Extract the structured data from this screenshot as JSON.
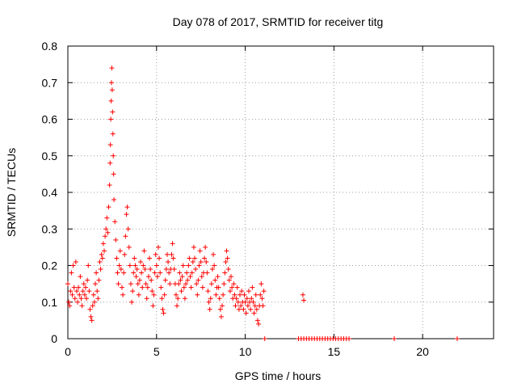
{
  "chart_data": {
    "type": "scatter",
    "title": "Day 078 of 2017, SRMTID for receiver titg",
    "xlabel": "GPS time / hours",
    "ylabel": "SRMTID / TECUs",
    "xlim": [
      0,
      24
    ],
    "ylim": [
      0,
      0.8
    ],
    "xticks": [
      0,
      5,
      10,
      15,
      20
    ],
    "xtick_labels": [
      "0",
      "5",
      "10",
      "15",
      "20"
    ],
    "yticks": [
      0,
      0.1,
      0.2,
      0.3,
      0.4,
      0.5,
      0.6,
      0.7,
      0.8
    ],
    "ytick_labels": [
      "0",
      "0.1",
      "0.2",
      "0.3",
      "0.4",
      "0.5",
      "0.6",
      "0.7",
      "0.8"
    ],
    "grid": true,
    "marker": "plus",
    "color": "#ff0000",
    "series": [
      {
        "name": "SRMTID",
        "points": [
          [
            0.0,
            0.15
          ],
          [
            0.05,
            0.1
          ],
          [
            0.1,
            0.09
          ],
          [
            0.15,
            0.13
          ],
          [
            0.2,
            0.18
          ],
          [
            0.25,
            0.12
          ],
          [
            0.3,
            0.2
          ],
          [
            0.35,
            0.14
          ],
          [
            0.4,
            0.11
          ],
          [
            0.45,
            0.21
          ],
          [
            0.5,
            0.13
          ],
          [
            0.55,
            0.1
          ],
          [
            0.6,
            0.14
          ],
          [
            0.65,
            0.12
          ],
          [
            0.7,
            0.17
          ],
          [
            0.75,
            0.11
          ],
          [
            0.8,
            0.09
          ],
          [
            0.85,
            0.13
          ],
          [
            0.9,
            0.15
          ],
          [
            0.95,
            0.12
          ],
          [
            1.0,
            0.14
          ],
          [
            1.05,
            0.11
          ],
          [
            1.1,
            0.16
          ],
          [
            1.15,
            0.2
          ],
          [
            1.2,
            0.13
          ],
          [
            1.25,
            0.08
          ],
          [
            1.3,
            0.06
          ],
          [
            1.35,
            0.05
          ],
          [
            1.4,
            0.09
          ],
          [
            1.45,
            0.12
          ],
          [
            1.5,
            0.1
          ],
          [
            1.55,
            0.15
          ],
          [
            1.6,
            0.18
          ],
          [
            1.65,
            0.13
          ],
          [
            1.7,
            0.11
          ],
          [
            1.75,
            0.16
          ],
          [
            1.8,
            0.21
          ],
          [
            1.85,
            0.19
          ],
          [
            1.9,
            0.23
          ],
          [
            1.95,
            0.22
          ],
          [
            2.0,
            0.26
          ],
          [
            2.05,
            0.24
          ],
          [
            2.1,
            0.28
          ],
          [
            2.15,
            0.3
          ],
          [
            2.2,
            0.33
          ],
          [
            2.25,
            0.29
          ],
          [
            2.3,
            0.36
          ],
          [
            2.35,
            0.42
          ],
          [
            2.38,
            0.48
          ],
          [
            2.4,
            0.53
          ],
          [
            2.42,
            0.6
          ],
          [
            2.44,
            0.65
          ],
          [
            2.46,
            0.7
          ],
          [
            2.48,
            0.74
          ],
          [
            2.5,
            0.68
          ],
          [
            2.52,
            0.62
          ],
          [
            2.54,
            0.56
          ],
          [
            2.56,
            0.5
          ],
          [
            2.58,
            0.45
          ],
          [
            2.6,
            0.38
          ],
          [
            2.65,
            0.32
          ],
          [
            2.7,
            0.27
          ],
          [
            2.75,
            0.22
          ],
          [
            2.8,
            0.18
          ],
          [
            2.85,
            0.15
          ],
          [
            2.9,
            0.2
          ],
          [
            2.95,
            0.24
          ],
          [
            3.0,
            0.19
          ],
          [
            3.05,
            0.14
          ],
          [
            3.1,
            0.12
          ],
          [
            3.15,
            0.18
          ],
          [
            3.2,
            0.23
          ],
          [
            3.25,
            0.28
          ],
          [
            3.3,
            0.34
          ],
          [
            3.35,
            0.36
          ],
          [
            3.4,
            0.3
          ],
          [
            3.45,
            0.25
          ],
          [
            3.5,
            0.2
          ],
          [
            3.55,
            0.15
          ],
          [
            3.6,
            0.1
          ],
          [
            3.65,
            0.13
          ],
          [
            3.7,
            0.18
          ],
          [
            3.75,
            0.22
          ],
          [
            3.8,
            0.2
          ],
          [
            3.85,
            0.17
          ],
          [
            3.9,
            0.19
          ],
          [
            3.95,
            0.15
          ],
          [
            4.0,
            0.12
          ],
          [
            4.05,
            0.16
          ],
          [
            4.1,
            0.21
          ],
          [
            4.15,
            0.18
          ],
          [
            4.2,
            0.14
          ],
          [
            4.25,
            0.2
          ],
          [
            4.3,
            0.24
          ],
          [
            4.35,
            0.19
          ],
          [
            4.4,
            0.15
          ],
          [
            4.45,
            0.11
          ],
          [
            4.5,
            0.14
          ],
          [
            4.55,
            0.17
          ],
          [
            4.6,
            0.22
          ],
          [
            4.65,
            0.19
          ],
          [
            4.7,
            0.16
          ],
          [
            4.75,
            0.13
          ],
          [
            4.8,
            0.09
          ],
          [
            4.85,
            0.12
          ],
          [
            4.9,
            0.18
          ],
          [
            4.95,
            0.23
          ],
          [
            5.0,
            0.2
          ],
          [
            5.05,
            0.17
          ],
          [
            5.1,
            0.25
          ],
          [
            5.15,
            0.22
          ],
          [
            5.2,
            0.18
          ],
          [
            5.25,
            0.14
          ],
          [
            5.3,
            0.11
          ],
          [
            5.35,
            0.08
          ],
          [
            5.4,
            0.07
          ],
          [
            5.45,
            0.12
          ],
          [
            5.5,
            0.16
          ],
          [
            5.55,
            0.19
          ],
          [
            5.6,
            0.23
          ],
          [
            5.65,
            0.21
          ],
          [
            5.7,
            0.18
          ],
          [
            5.75,
            0.15
          ],
          [
            5.8,
            0.19
          ],
          [
            5.85,
            0.23
          ],
          [
            5.9,
            0.26
          ],
          [
            5.95,
            0.22
          ],
          [
            6.0,
            0.19
          ],
          [
            6.05,
            0.15
          ],
          [
            6.1,
            0.12
          ],
          [
            6.15,
            0.09
          ],
          [
            6.2,
            0.11
          ],
          [
            6.25,
            0.15
          ],
          [
            6.3,
            0.18
          ],
          [
            6.35,
            0.16
          ],
          [
            6.4,
            0.13
          ],
          [
            6.45,
            0.17
          ],
          [
            6.5,
            0.2
          ],
          [
            6.55,
            0.14
          ],
          [
            6.6,
            0.11
          ],
          [
            6.65,
            0.15
          ],
          [
            6.7,
            0.18
          ],
          [
            6.75,
            0.16
          ],
          [
            6.8,
            0.2
          ],
          [
            6.85,
            0.22
          ],
          [
            6.9,
            0.17
          ],
          [
            6.95,
            0.14
          ],
          [
            7.0,
            0.18
          ],
          [
            7.05,
            0.21
          ],
          [
            7.1,
            0.25
          ],
          [
            7.15,
            0.22
          ],
          [
            7.2,
            0.19
          ],
          [
            7.25,
            0.15
          ],
          [
            7.3,
            0.12
          ],
          [
            7.35,
            0.16
          ],
          [
            7.4,
            0.2
          ],
          [
            7.45,
            0.24
          ],
          [
            7.5,
            0.21
          ],
          [
            7.55,
            0.17
          ],
          [
            7.6,
            0.14
          ],
          [
            7.65,
            0.18
          ],
          [
            7.7,
            0.22
          ],
          [
            7.75,
            0.25
          ],
          [
            7.8,
            0.21
          ],
          [
            7.85,
            0.18
          ],
          [
            7.9,
            0.13
          ],
          [
            7.95,
            0.1
          ],
          [
            8.0,
            0.08
          ],
          [
            8.05,
            0.11
          ],
          [
            8.1,
            0.15
          ],
          [
            8.15,
            0.19
          ],
          [
            8.2,
            0.23
          ],
          [
            8.25,
            0.2
          ],
          [
            8.3,
            0.16
          ],
          [
            8.35,
            0.12
          ],
          [
            8.4,
            0.14
          ],
          [
            8.45,
            0.17
          ],
          [
            8.5,
            0.14
          ],
          [
            8.55,
            0.11
          ],
          [
            8.6,
            0.08
          ],
          [
            8.65,
            0.06
          ],
          [
            8.7,
            0.09
          ],
          [
            8.75,
            0.12
          ],
          [
            8.8,
            0.15
          ],
          [
            8.85,
            0.18
          ],
          [
            8.9,
            0.21
          ],
          [
            8.95,
            0.24
          ],
          [
            9.0,
            0.22
          ],
          [
            9.05,
            0.19
          ],
          [
            9.1,
            0.16
          ],
          [
            9.15,
            0.13
          ],
          [
            9.2,
            0.17
          ],
          [
            9.25,
            0.14
          ],
          [
            9.3,
            0.11
          ],
          [
            9.35,
            0.15
          ],
          [
            9.4,
            0.12
          ],
          [
            9.45,
            0.09
          ],
          [
            9.5,
            0.11
          ],
          [
            9.55,
            0.14
          ],
          [
            9.6,
            0.1
          ],
          [
            9.65,
            0.08
          ],
          [
            9.7,
            0.12
          ],
          [
            9.75,
            0.09
          ],
          [
            9.8,
            0.13
          ],
          [
            9.85,
            0.1
          ],
          [
            9.9,
            0.08
          ],
          [
            9.95,
            0.12
          ],
          [
            10.0,
            0.1
          ],
          [
            10.05,
            0.07
          ],
          [
            10.1,
            0.11
          ],
          [
            10.15,
            0.09
          ],
          [
            10.2,
            0.13
          ],
          [
            10.25,
            0.1
          ],
          [
            10.3,
            0.08
          ],
          [
            10.35,
            0.11
          ],
          [
            10.4,
            0.14
          ],
          [
            10.45,
            0.1
          ],
          [
            10.5,
            0.07
          ],
          [
            10.55,
            0.09
          ],
          [
            10.6,
            0.12
          ],
          [
            10.65,
            0.08
          ],
          [
            10.7,
            0.05
          ],
          [
            10.75,
            0.04
          ],
          [
            10.8,
            0.09
          ],
          [
            10.85,
            0.12
          ],
          [
            10.9,
            0.15
          ],
          [
            10.95,
            0.11
          ],
          [
            11.0,
            0.09
          ],
          [
            11.05,
            0.13
          ],
          [
            11.1,
            0.0
          ],
          [
            13.25,
            0.12
          ],
          [
            13.3,
            0.105
          ],
          [
            13.0,
            0.0
          ],
          [
            13.15,
            0.0
          ],
          [
            13.3,
            0.0
          ],
          [
            13.45,
            0.0
          ],
          [
            13.6,
            0.0
          ],
          [
            13.75,
            0.0
          ],
          [
            13.9,
            0.0
          ],
          [
            14.05,
            0.0
          ],
          [
            14.2,
            0.0
          ],
          [
            14.35,
            0.0
          ],
          [
            14.5,
            0.0
          ],
          [
            14.65,
            0.0
          ],
          [
            14.8,
            0.0
          ],
          [
            14.95,
            0.0
          ],
          [
            15.1,
            0.0
          ],
          [
            15.25,
            0.0
          ],
          [
            15.4,
            0.0
          ],
          [
            15.55,
            0.0
          ],
          [
            15.7,
            0.0
          ],
          [
            15.85,
            0.0
          ],
          [
            18.4,
            0.0
          ],
          [
            21.95,
            0.0
          ]
        ]
      }
    ]
  }
}
